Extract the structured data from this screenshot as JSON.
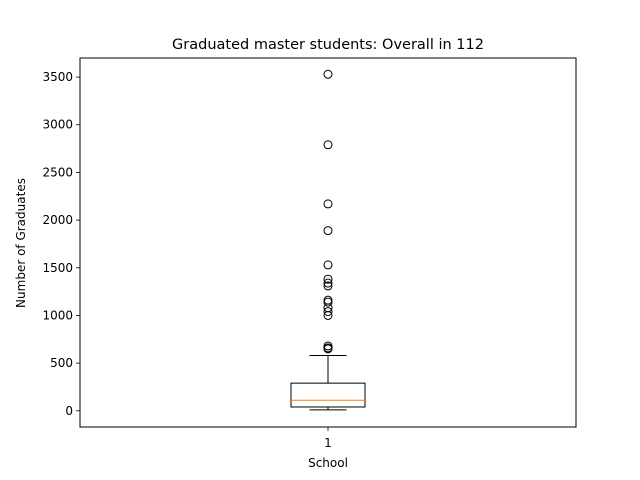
{
  "chart_data": {
    "type": "box",
    "title": "Graduated master students: Overall in 112",
    "xlabel": "School",
    "ylabel": "Number of Graduates",
    "categories": [
      "1"
    ],
    "ylim": [
      -170,
      3700
    ],
    "yticks": [
      0,
      500,
      1000,
      1500,
      2000,
      2500,
      3000,
      3500
    ],
    "box": {
      "whisker_low": 10,
      "q1": 40,
      "median": 110,
      "q3": 290,
      "whisker_high": 580
    },
    "outliers": [
      3530,
      2790,
      2170,
      1890,
      1530,
      1380,
      1340,
      1310,
      1160,
      1140,
      1080,
      1040,
      1000,
      680,
      660,
      650
    ],
    "colors": {
      "median": "#ff7f0e",
      "box": "#000000",
      "axes": "#000000"
    },
    "grid": false
  }
}
